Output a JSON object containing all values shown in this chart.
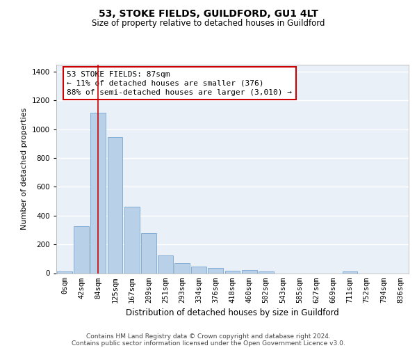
{
  "title": "53, STOKE FIELDS, GUILDFORD, GU1 4LT",
  "subtitle": "Size of property relative to detached houses in Guildford",
  "xlabel": "Distribution of detached houses by size in Guildford",
  "ylabel": "Number of detached properties",
  "footer_line1": "Contains HM Land Registry data © Crown copyright and database right 2024.",
  "footer_line2": "Contains public sector information licensed under the Open Government Licence v3.0.",
  "annotation_line1": "53 STOKE FIELDS: 87sqm",
  "annotation_line2": "← 11% of detached houses are smaller (376)",
  "annotation_line3": "88% of semi-detached houses are larger (3,010) →",
  "bar_color": "#b8d0e8",
  "bar_edge_color": "#6699cc",
  "vline_color": "#cc0000",
  "vline_x_index": 2,
  "background_color": "#ffffff",
  "plot_bg_color": "#eaf0f8",
  "grid_color": "#ffffff",
  "categories": [
    "0sqm",
    "42sqm",
    "84sqm",
    "125sqm",
    "167sqm",
    "209sqm",
    "251sqm",
    "293sqm",
    "334sqm",
    "376sqm",
    "418sqm",
    "460sqm",
    "502sqm",
    "543sqm",
    "585sqm",
    "627sqm",
    "669sqm",
    "711sqm",
    "752sqm",
    "794sqm",
    "836sqm"
  ],
  "values": [
    10,
    325,
    1115,
    945,
    460,
    280,
    125,
    70,
    45,
    35,
    18,
    22,
    12,
    0,
    0,
    0,
    0,
    10,
    0,
    0,
    0
  ],
  "ylim": [
    0,
    1450
  ],
  "yticks": [
    0,
    200,
    400,
    600,
    800,
    1000,
    1200,
    1400
  ],
  "title_fontsize": 10,
  "subtitle_fontsize": 8.5,
  "ylabel_fontsize": 8,
  "xlabel_fontsize": 8.5,
  "tick_fontsize": 7.5,
  "annotation_fontsize": 8,
  "footer_fontsize": 6.5
}
